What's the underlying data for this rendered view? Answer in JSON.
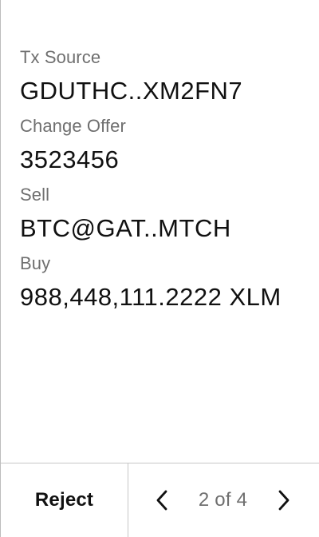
{
  "details": {
    "tx_source_label": "Tx Source",
    "tx_source_value": "GDUTHC..XM2FN7",
    "change_offer_label": "Change Offer",
    "change_offer_value": "3523456",
    "sell_label": "Sell",
    "sell_value": "BTC@GAT..MTCH",
    "buy_label": "Buy",
    "buy_value": "988,448,111.2222 XLM"
  },
  "footer": {
    "reject_label": "Reject",
    "pager_text": "2 of 4",
    "previous_icon": "chevron-left-icon",
    "next_icon": "chevron-right-icon"
  },
  "colors": {
    "text_primary": "#111111",
    "text_secondary": "#6f6f6f",
    "divider": "#c7c7c7",
    "background": "#ffffff"
  }
}
